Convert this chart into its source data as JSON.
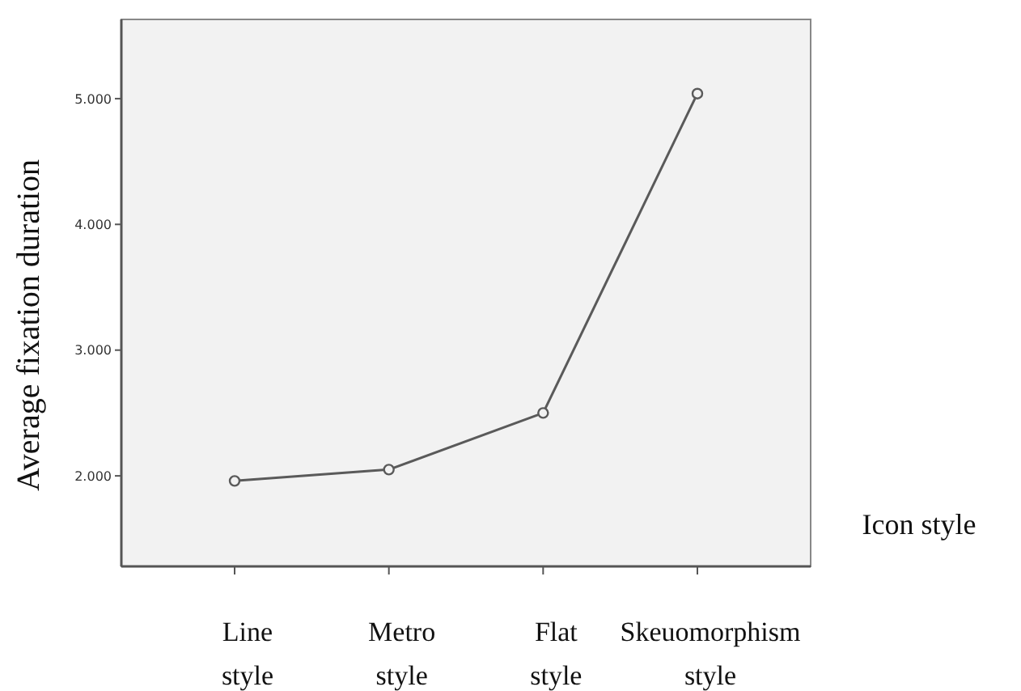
{
  "chart_data": {
    "type": "line",
    "xlabel": "Icon style",
    "ylabel": "Average fixation duration",
    "categories": [
      "Line style",
      "Metro style",
      "Flat style",
      "Skeuomorphism style"
    ],
    "series": [
      {
        "color": "#5a5a5a",
        "values": [
          1.96,
          2.05,
          2.5,
          5.04
        ]
      }
    ],
    "ylim": [
      1.28,
      5.63
    ],
    "yticks": [
      {
        "value": 2,
        "label": "2.000"
      },
      {
        "value": 3,
        "label": "3.000"
      },
      {
        "value": 4,
        "label": "4.000"
      },
      {
        "value": 5,
        "label": "5.000"
      }
    ],
    "marker": "circle",
    "line_style": "solid"
  }
}
